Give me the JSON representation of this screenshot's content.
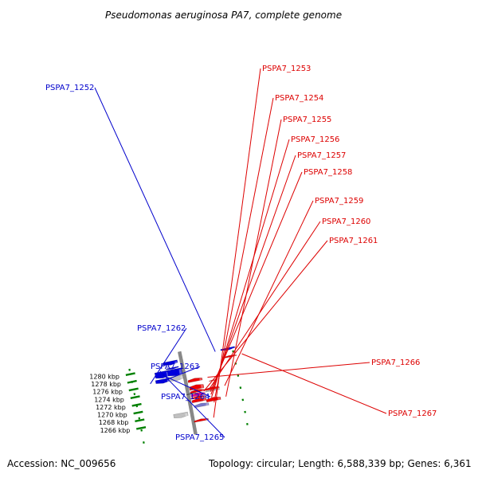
{
  "title": "Pseudomonas aeruginosa PA7, complete genome",
  "footer": {
    "accession": "Accession: NC_009656",
    "topology": "Topology: circular; Length: 6,588,339 bp; Genes: 6,361"
  },
  "colors": {
    "backbone": "#888888",
    "tick": "#008000",
    "gene_red": "#ee0000",
    "gene_blue": "#0000dd",
    "gene_purple": "#7777cc",
    "gene_magenta": "#dd1188",
    "gene_gray": "#c0c0c0",
    "gene_dark": "#555555",
    "label_red": "#dd0000",
    "label_blue": "#0000cc"
  },
  "ticks": [
    "1266 kbp",
    "1268 kbp",
    "1270 kbp",
    "1272 kbp",
    "1274 kbp",
    "1276 kbp",
    "1278 kbp",
    "1280 kbp"
  ],
  "genes": [
    {
      "strand": "plus",
      "color": "gene_red",
      "label": "PSPA7_1253"
    },
    {
      "strand": "plus",
      "color": "gene_purple",
      "label": "PSPA7_1254"
    },
    {
      "strand": "plus",
      "color": "gene_red",
      "label": "PSPA7_1255"
    },
    {
      "strand": "plus",
      "color": "gene_red",
      "label": "PSPA7_1256"
    },
    {
      "strand": "plus",
      "color": "gene_red",
      "label": "PSPA7_1257"
    },
    {
      "strand": "plus",
      "color": "gene_magenta",
      "label": "PSPA7_1258"
    },
    {
      "strand": "plus",
      "color": "gene_gray",
      "label": ""
    },
    {
      "strand": "plus",
      "color": "gene_red",
      "label": "PSPA7_1259"
    },
    {
      "strand": "plus",
      "color": "gene_red",
      "label": "PSPA7_1260"
    },
    {
      "strand": "plus",
      "color": "gene_red",
      "label": ""
    },
    {
      "strand": "plus",
      "color": "gene_dark",
      "label": "PSPA7_1261"
    },
    {
      "strand": "plus",
      "color": "gene_red",
      "label": ""
    },
    {
      "strand": "plus",
      "color": "gene_red",
      "label": "PSPA7_1266"
    },
    {
      "strand": "plus",
      "color": "gene_red",
      "label": "PSPA7_1267"
    },
    {
      "strand": "minus",
      "color": "gene_blue",
      "label": "PSPA7_1252"
    },
    {
      "strand": "minus",
      "color": "gene_gray",
      "label": ""
    },
    {
      "strand": "minus",
      "color": "gene_blue",
      "label": "PSPA7_1262"
    },
    {
      "strand": "minus",
      "color": "gene_gray",
      "label": "PSPA7_1263"
    },
    {
      "strand": "minus",
      "color": "gene_blue",
      "label": ""
    },
    {
      "strand": "minus",
      "color": "gene_blue",
      "label": "PSPA7_1264"
    },
    {
      "strand": "minus",
      "color": "gene_blue",
      "label": "PSPA7_1265"
    },
    {
      "strand": "minus",
      "color": "gene_blue",
      "label": ""
    }
  ]
}
